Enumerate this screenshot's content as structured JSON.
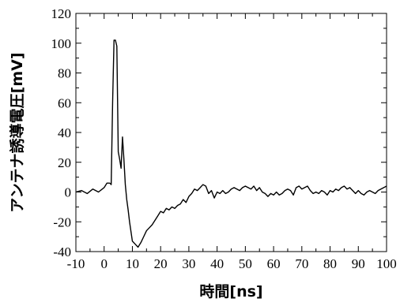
{
  "chart_data": {
    "type": "line",
    "title": "",
    "xlabel": "時間[ns]",
    "ylabel": "アンテナ誘導電圧[mV]",
    "xlim": [
      -10,
      100
    ],
    "ylim": [
      -40,
      120
    ],
    "xticks": [
      -10,
      0,
      10,
      20,
      30,
      40,
      50,
      60,
      70,
      80,
      90,
      100
    ],
    "yticks": [
      -40,
      -20,
      0,
      20,
      40,
      60,
      80,
      100,
      120
    ],
    "grid": false,
    "legend": "none",
    "line_color": "#000000",
    "series": [
      {
        "x": [
          -10,
          -8,
          -6,
          -4,
          -2,
          0,
          1,
          2,
          2.5,
          3,
          3.5,
          4,
          4.5,
          5,
          5.5,
          6,
          6.5,
          7,
          7.5,
          8,
          8.5,
          9,
          10,
          11,
          12,
          13,
          14,
          15,
          16,
          17,
          18,
          19,
          20,
          21,
          22,
          23,
          24,
          25,
          26,
          27,
          28,
          29,
          30,
          31,
          32,
          33,
          34,
          35,
          36,
          37,
          38,
          39,
          40,
          41,
          42,
          43,
          44,
          45,
          46,
          47,
          48,
          49,
          50,
          51,
          52,
          53,
          54,
          55,
          56,
          57,
          58,
          59,
          60,
          61,
          62,
          63,
          64,
          65,
          66,
          67,
          68,
          69,
          70,
          71,
          72,
          73,
          74,
          75,
          76,
          77,
          78,
          79,
          80,
          81,
          82,
          83,
          84,
          85,
          86,
          87,
          88,
          89,
          90,
          91,
          92,
          93,
          94,
          95,
          96,
          97,
          98,
          99,
          100
        ],
        "y": [
          0,
          1,
          -1,
          2,
          0,
          3,
          6,
          6,
          5,
          60,
          102,
          102,
          98,
          27,
          22,
          16,
          37,
          22,
          5,
          -5,
          -12,
          -20,
          -33,
          -35,
          -37,
          -34,
          -30,
          -26,
          -24,
          -22,
          -19,
          -16,
          -13,
          -14,
          -11,
          -12,
          -10,
          -11,
          -9,
          -8,
          -5,
          -7,
          -3,
          -1,
          2,
          1,
          3,
          5,
          4,
          -1,
          1,
          -4,
          0,
          -1,
          1,
          -1,
          0,
          2,
          3,
          2,
          1,
          3,
          4,
          3,
          2,
          4,
          1,
          3,
          0,
          -1,
          -3,
          -1,
          -2,
          0,
          -2,
          -1,
          1,
          2,
          1,
          -2,
          3,
          4,
          2,
          3,
          4,
          1,
          -1,
          0,
          -1,
          1,
          0,
          -2,
          1,
          0,
          2,
          1,
          3,
          4,
          2,
          3,
          1,
          -1,
          1,
          -1,
          -2,
          0,
          1,
          0,
          -1,
          1,
          2,
          3,
          4
        ]
      }
    ]
  }
}
